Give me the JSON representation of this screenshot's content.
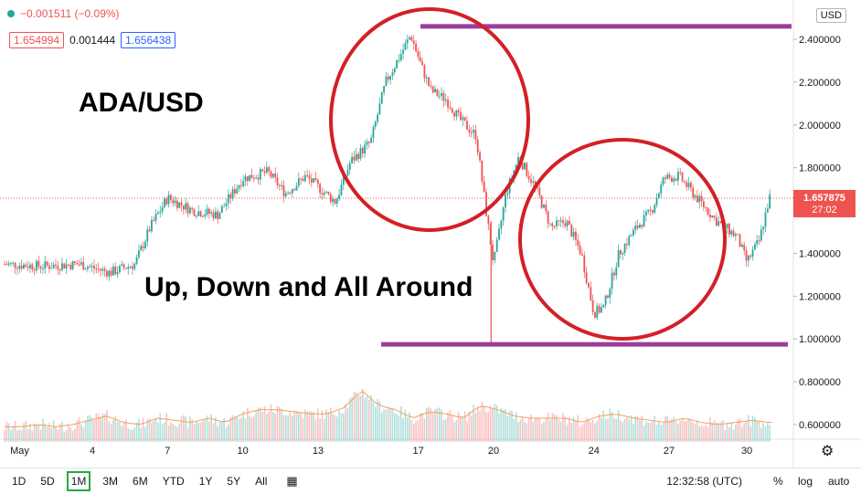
{
  "header": {
    "change_text": "−0.001511 (−0.09%)",
    "bid": "1.654994",
    "spread": "0.001444",
    "ask": "1.656438",
    "currency_button": "USD"
  },
  "annotations": {
    "title": "ADA/USD",
    "subtitle": "Up, Down and All Around"
  },
  "price_label": {
    "value": "1.657875",
    "countdown": "27:02"
  },
  "bottom_bar": {
    "ranges": [
      "1D",
      "5D",
      "1M",
      "3M",
      "6M",
      "YTD",
      "1Y",
      "5Y",
      "All"
    ],
    "active_range": "1M",
    "time": "12:32:58 (UTC)",
    "percent": "%",
    "log": "log",
    "auto": "auto"
  },
  "colors": {
    "up": "#26a69a",
    "down": "#ef5350",
    "annotation_line": "#9c3d9a",
    "circle": "#d32027",
    "price_line": "#ef5350"
  },
  "chart_data": {
    "type": "candlestick",
    "y_ticks": [
      "2.400000",
      "2.200000",
      "2.000000",
      "1.800000",
      "1.600000",
      "1.400000",
      "1.200000",
      "1.000000",
      "0.800000",
      "0.600000"
    ],
    "x_ticks": [
      "May",
      "4",
      "7",
      "10",
      "13",
      "17",
      "20",
      "24",
      "27",
      "30"
    ],
    "ylim": [
      0.52,
      2.5
    ],
    "close_path": [
      [
        0,
        1.35
      ],
      [
        1.5,
        1.34
      ],
      [
        3,
        1.35
      ],
      [
        4.2,
        1.31
      ],
      [
        5.2,
        1.35
      ],
      [
        5.8,
        1.52
      ],
      [
        6.5,
        1.66
      ],
      [
        7.5,
        1.6
      ],
      [
        8.5,
        1.58
      ],
      [
        9.5,
        1.75
      ],
      [
        10.5,
        1.78
      ],
      [
        11.2,
        1.68
      ],
      [
        12,
        1.76
      ],
      [
        12.6,
        1.7
      ],
      [
        13.2,
        1.64
      ],
      [
        13.8,
        1.83
      ],
      [
        14.6,
        1.92
      ],
      [
        15.2,
        2.2
      ],
      [
        15.8,
        2.33
      ],
      [
        16.2,
        2.42
      ],
      [
        16.6,
        2.28
      ],
      [
        17.0,
        2.16
      ],
      [
        17.6,
        2.12
      ],
      [
        18.2,
        2.02
      ],
      [
        18.8,
        1.95
      ],
      [
        19.2,
        1.6
      ],
      [
        19.5,
        1.35
      ],
      [
        20.0,
        1.68
      ],
      [
        20.5,
        1.85
      ],
      [
        21.2,
        1.7
      ],
      [
        21.8,
        1.52
      ],
      [
        22.4,
        1.55
      ],
      [
        23.0,
        1.4
      ],
      [
        23.5,
        1.12
      ],
      [
        23.9,
        1.15
      ],
      [
        24.5,
        1.4
      ],
      [
        25.2,
        1.52
      ],
      [
        25.8,
        1.6
      ],
      [
        26.3,
        1.75
      ],
      [
        26.9,
        1.76
      ],
      [
        27.6,
        1.66
      ],
      [
        28.4,
        1.55
      ],
      [
        29.2,
        1.48
      ],
      [
        29.6,
        1.36
      ],
      [
        30.1,
        1.46
      ],
      [
        30.5,
        1.66
      ]
    ],
    "volume_path": [
      0.58,
      0.58,
      0.59,
      0.58,
      0.59,
      0.61,
      0.63,
      0.6,
      0.59,
      0.62,
      0.61,
      0.6,
      0.62,
      0.6,
      0.64,
      0.66,
      0.66,
      0.65,
      0.64,
      0.64,
      0.67,
      0.75,
      0.68,
      0.66,
      0.62,
      0.65,
      0.64,
      0.62,
      0.68,
      0.66,
      0.63,
      0.62,
      0.62,
      0.62,
      0.6,
      0.63,
      0.64,
      0.62,
      0.61,
      0.6,
      0.62,
      0.6,
      0.59,
      0.6,
      0.61,
      0.6
    ],
    "current_price": 1.657875,
    "resistance": 2.46,
    "support": 0.975
  }
}
